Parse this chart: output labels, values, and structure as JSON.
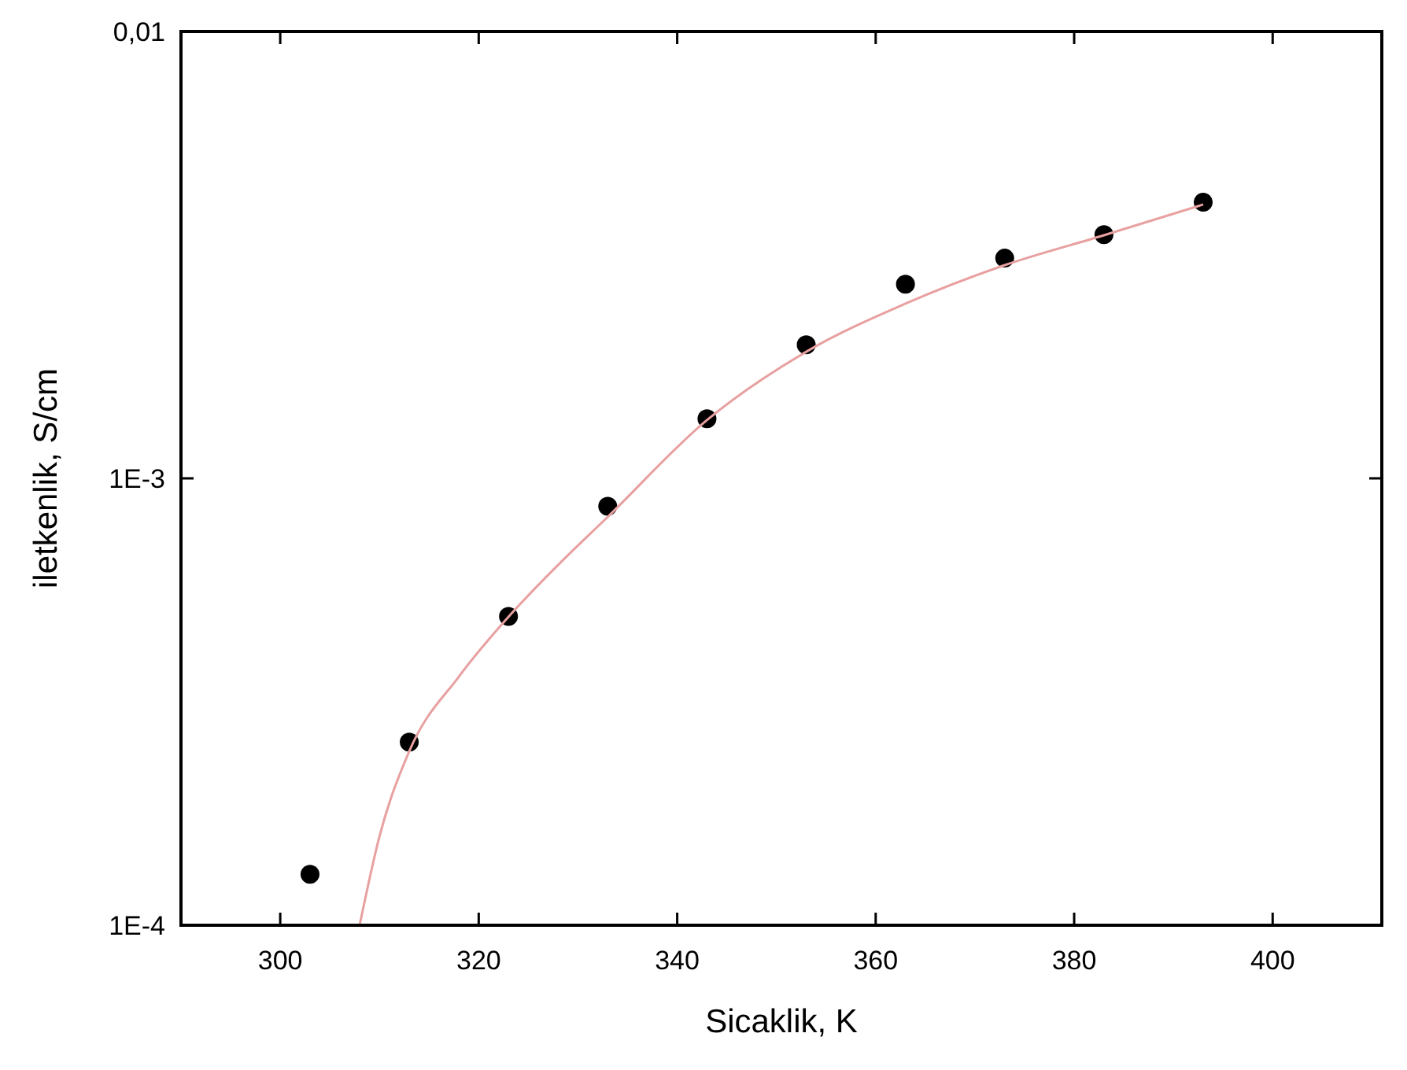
{
  "chart_data": {
    "type": "scatter",
    "xlabel": "Sicaklik, K",
    "ylabel": "iletkenlik, S/cm",
    "log": "y",
    "grid": false,
    "xlim": [
      290,
      411
    ],
    "xticks": [
      300,
      320,
      340,
      360,
      380,
      400
    ],
    "ylim": [
      0.0001,
      0.01
    ],
    "yticks": [
      {
        "value": 0.0001,
        "label": "1E-4"
      },
      {
        "value": 0.001,
        "label": "1E-3"
      },
      {
        "value": 0.01,
        "label": "0,01"
      }
    ],
    "x": [
      303,
      313,
      323,
      333,
      343,
      353,
      363,
      373,
      383,
      393
    ],
    "series": [
      {
        "marker": "circle",
        "color": "#000000",
        "values": [
          0.00013,
          0.000257,
          0.000491,
          0.000866,
          0.00136,
          0.00199,
          0.00272,
          0.00311,
          0.00351,
          0.00415
        ]
      },
      {
        "type": "line",
        "marker": "none",
        "color": "#e8a0a0",
        "x": [
          308,
          310,
          313,
          318,
          323,
          328,
          333,
          343,
          353,
          363,
          373,
          383,
          393
        ],
        "values": [
          0.0001,
          0.000158,
          0.000245,
          0.00036,
          0.00049,
          0.00064,
          0.00082,
          0.00135,
          0.00192,
          0.00246,
          0.003,
          0.0035,
          0.0041
        ]
      }
    ]
  }
}
